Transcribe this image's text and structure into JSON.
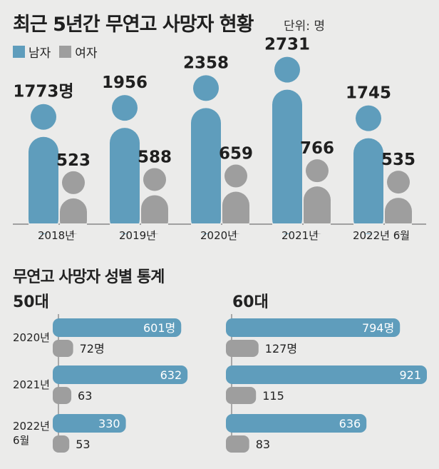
{
  "header": {
    "title": "최근 5년간 무연고 사망자 현황",
    "unit": "단위: 명"
  },
  "legend": {
    "male": "남자",
    "female": "여자"
  },
  "colors": {
    "male": "#5f9dbc",
    "female": "#9e9e9e",
    "background": "#ebebea"
  },
  "chart_data": [
    {
      "type": "bar",
      "categories": [
        "2018년",
        "2019년",
        "2020년",
        "2021년",
        "2022년 6월"
      ],
      "series": [
        {
          "name": "남자",
          "values": [
            1773,
            1956,
            2358,
            2731,
            1745
          ],
          "labels": [
            "1773명",
            "1956",
            "2358",
            "2731",
            "1745"
          ]
        },
        {
          "name": "여자",
          "values": [
            523,
            588,
            659,
            766,
            535
          ],
          "labels": [
            "523",
            "588",
            "659",
            "766",
            "535"
          ]
        }
      ],
      "title": "최근 5년간 무연고 사망자 현황",
      "ylim": [
        0,
        2900
      ]
    },
    {
      "type": "bar",
      "orientation": "horizontal",
      "section_title": "무연고 사망자 성별 통계",
      "title": "50대",
      "categories": [
        "2020년",
        "2021년",
        "2022년 6월"
      ],
      "category_lines": [
        [
          "2020년"
        ],
        [
          "2021년"
        ],
        [
          "2022년",
          "6월"
        ]
      ],
      "series": [
        {
          "name": "남자",
          "values": [
            601,
            632,
            330
          ],
          "labels": [
            "601명",
            "632",
            "330"
          ]
        },
        {
          "name": "여자",
          "values": [
            72,
            63,
            53
          ],
          "labels": [
            "72명",
            "63",
            "53"
          ]
        }
      ],
      "xlim": [
        0,
        921
      ]
    },
    {
      "type": "bar",
      "orientation": "horizontal",
      "title": "60대",
      "categories": [
        "2020년",
        "2021년",
        "2022년 6월"
      ],
      "series": [
        {
          "name": "남자",
          "values": [
            794,
            921,
            636
          ],
          "labels": [
            "794명",
            "921",
            "636"
          ]
        },
        {
          "name": "여자",
          "values": [
            127,
            115,
            83
          ],
          "labels": [
            "127명",
            "115",
            "83"
          ]
        }
      ],
      "xlim": [
        0,
        921
      ]
    }
  ]
}
